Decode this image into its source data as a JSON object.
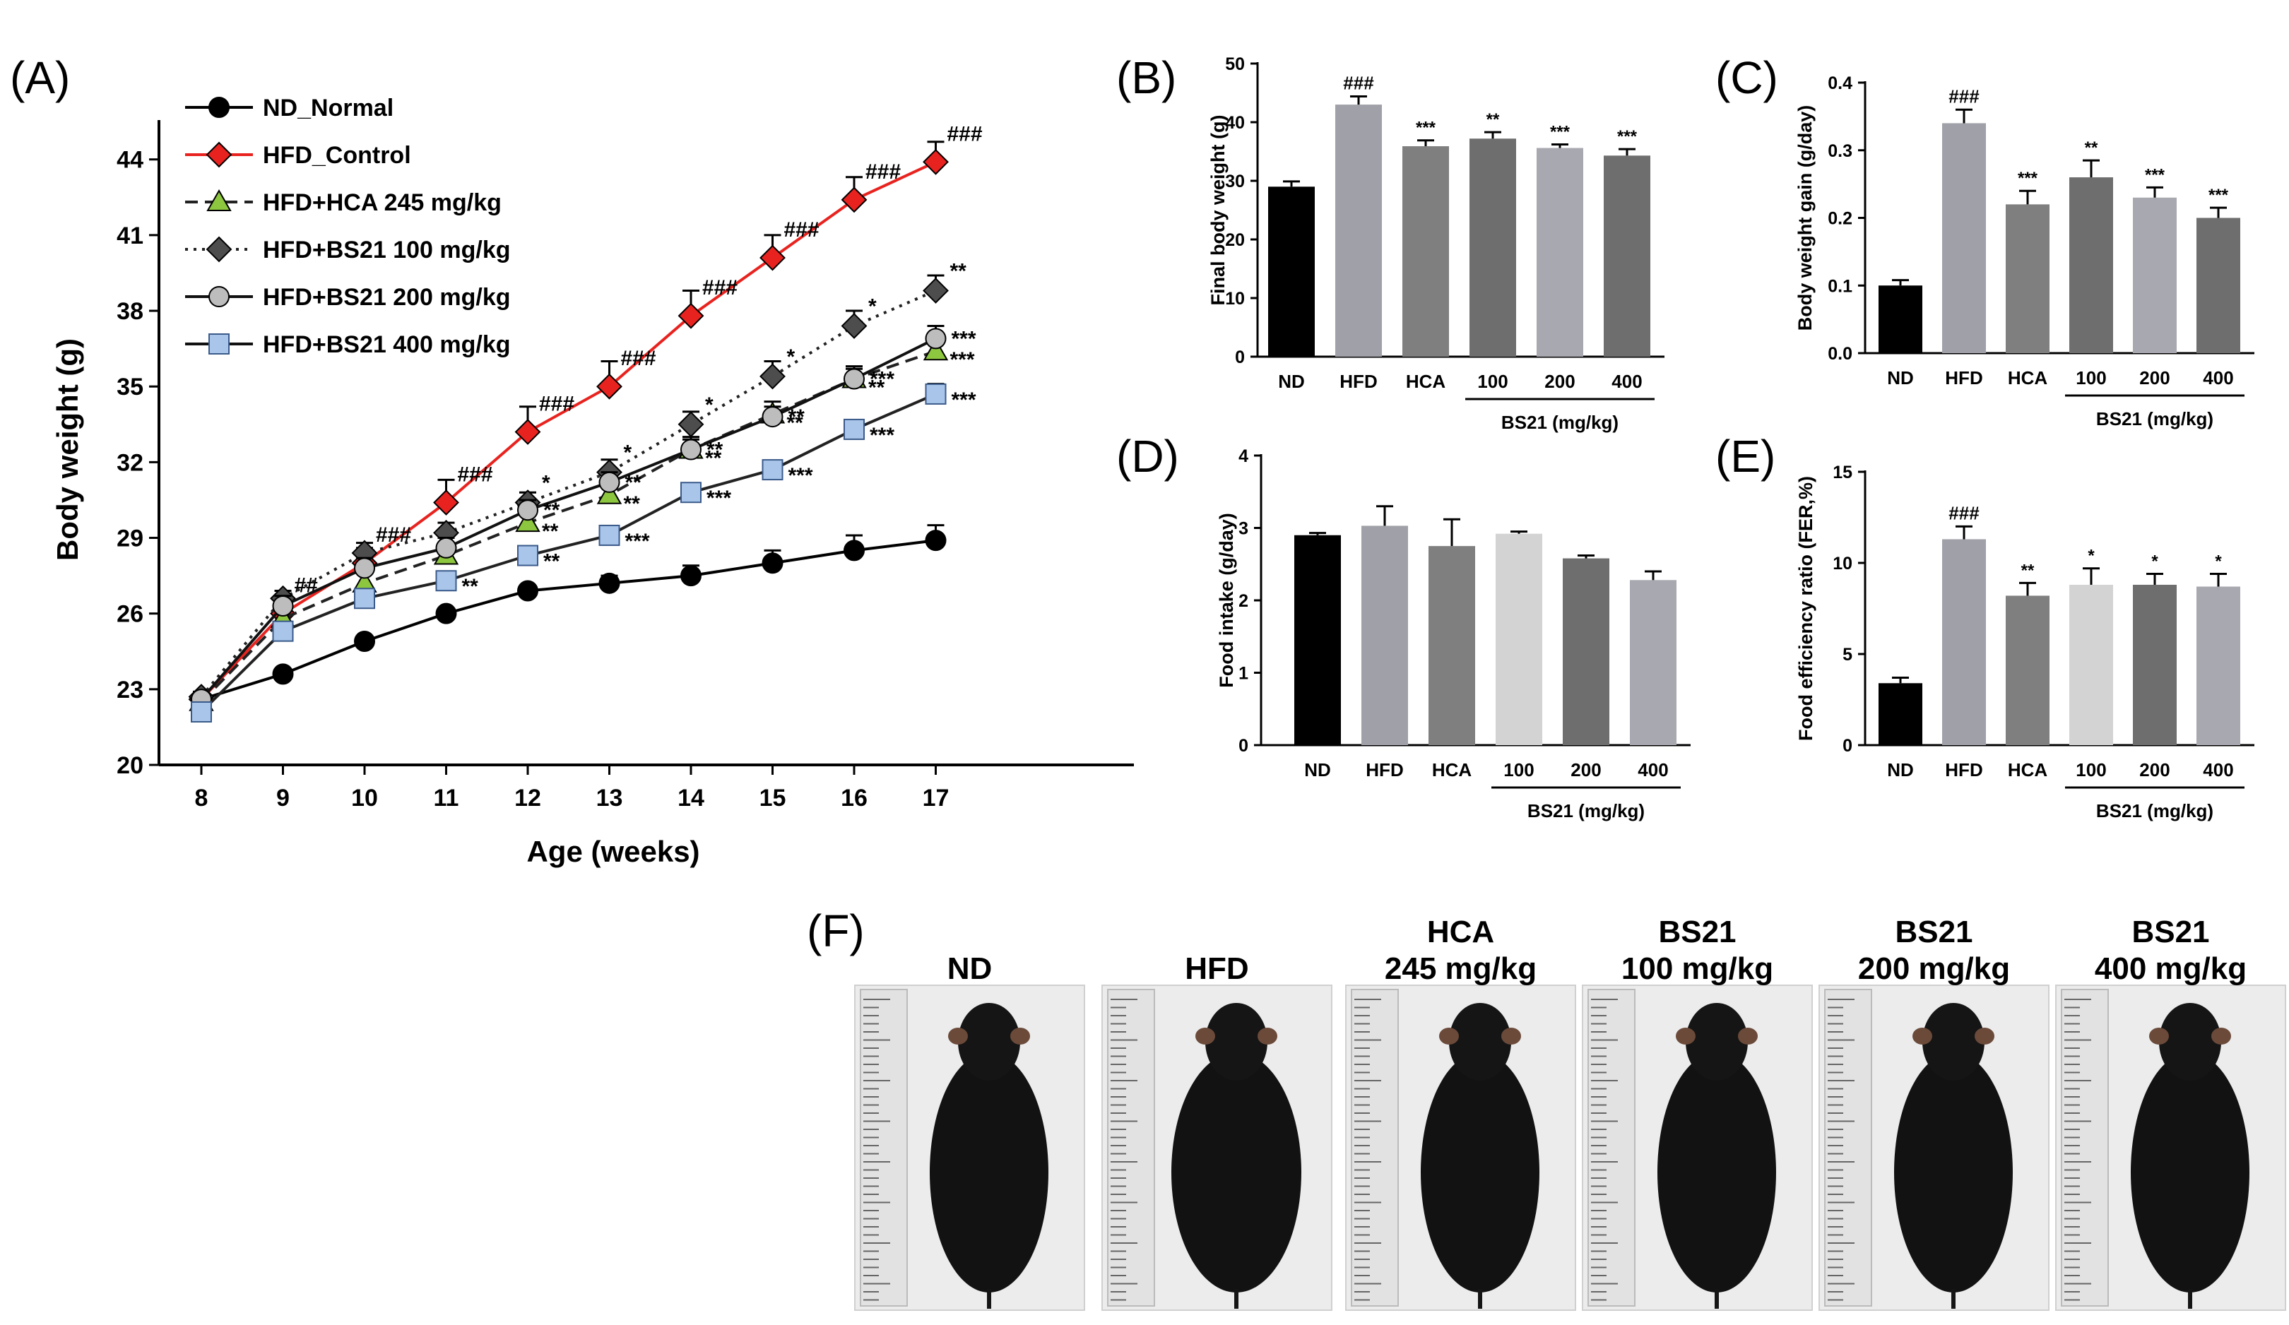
{
  "panels": {
    "A": "(A)",
    "B": "(B)",
    "C": "(C)",
    "D": "(D)",
    "E": "(E)",
    "F": "(F)"
  },
  "chart_data": [
    {
      "panel": "A",
      "type": "line",
      "xlabel": "Age (weeks)",
      "ylabel": "Body  weight (g)",
      "x": [
        8,
        9,
        10,
        11,
        12,
        13,
        14,
        15,
        16,
        17
      ],
      "ylim": [
        20,
        45
      ],
      "yticks": [
        20,
        23,
        26,
        29,
        32,
        35,
        38,
        41,
        44
      ],
      "legend_position": "top-left",
      "series": [
        {
          "name": "ND_Normal",
          "color": "#000000",
          "marker": "circle",
          "dash": "solid",
          "values": [
            22.6,
            23.6,
            24.9,
            26.0,
            26.9,
            27.2,
            27.5,
            28.0,
            28.5,
            28.9
          ],
          "errors": [
            0.2,
            0.2,
            0.2,
            0.2,
            0.2,
            0.3,
            0.4,
            0.5,
            0.6,
            0.6
          ],
          "annotations": [
            "",
            "",
            "",
            "",
            "",
            "",
            "",
            "",
            "",
            ""
          ]
        },
        {
          "name": "HFD_Control",
          "color": "#e8231f",
          "marker": "diamond",
          "dash": "solid",
          "values": [
            22.6,
            26.0,
            28.0,
            30.4,
            33.2,
            35.0,
            37.8,
            40.1,
            42.4,
            43.9
          ],
          "errors": [
            0.2,
            0.4,
            0.6,
            0.9,
            1.0,
            1.0,
            1.0,
            0.9,
            0.9,
            0.8
          ],
          "annotations": [
            "",
            "##",
            "###",
            "###",
            "###",
            "###",
            "###",
            "###",
            "###",
            "###"
          ]
        },
        {
          "name": "HFD+HCA 245 mg/kg",
          "color": "#8dc63f",
          "marker": "triangle",
          "dash": "dashed",
          "values": [
            22.5,
            25.8,
            27.2,
            28.3,
            29.6,
            30.7,
            32.5,
            33.9,
            35.3,
            36.4
          ],
          "errors": [
            0.2,
            0.4,
            0.5,
            0.5,
            0.5,
            0.5,
            0.5,
            0.5,
            0.5,
            0.5
          ],
          "annotations": [
            "",
            "",
            "",
            "",
            "**",
            "**",
            "**",
            "**",
            "**",
            "***"
          ]
        },
        {
          "name": "HFD+BS21 100 mg/kg",
          "color": "#4d4d4d",
          "marker": "diamond",
          "dash": "dotted",
          "values": [
            22.7,
            26.6,
            28.4,
            29.2,
            30.4,
            31.6,
            33.5,
            35.4,
            37.4,
            38.8
          ],
          "errors": [
            0.2,
            0.3,
            0.4,
            0.4,
            0.4,
            0.5,
            0.5,
            0.6,
            0.6,
            0.6
          ],
          "annotations": [
            "",
            "",
            "",
            "",
            "*",
            "*",
            "*",
            "*",
            "*",
            "**"
          ]
        },
        {
          "name": "HFD+BS21 200 mg/kg",
          "color": "#bdbdbd",
          "marker": "circle",
          "dash": "solid",
          "values": [
            22.6,
            26.3,
            27.8,
            28.6,
            30.1,
            31.2,
            32.5,
            33.8,
            35.3,
            36.9
          ],
          "errors": [
            0.2,
            0.4,
            0.4,
            0.4,
            0.4,
            0.4,
            0.4,
            0.4,
            0.4,
            0.5
          ],
          "annotations": [
            "",
            "",
            "",
            "",
            "**",
            "**",
            "**",
            "**",
            "***",
            "***"
          ]
        },
        {
          "name": "HFD+BS21 400 mg/kg",
          "color": "#a9c6ea",
          "marker": "square",
          "dash": "solid",
          "values": [
            22.1,
            25.3,
            26.6,
            27.3,
            28.3,
            29.1,
            30.8,
            31.7,
            33.3,
            34.7
          ],
          "errors": [
            0.2,
            0.3,
            0.3,
            0.3,
            0.3,
            0.3,
            0.3,
            0.3,
            0.3,
            0.4
          ],
          "annotations": [
            "",
            "",
            "",
            "**",
            "**",
            "***",
            "***",
            "***",
            "***",
            "***"
          ]
        }
      ]
    },
    {
      "panel": "B",
      "type": "bar",
      "ylabel": "Final body weight (g)",
      "categories": [
        "ND",
        "HFD",
        "HCA",
        "100",
        "200",
        "400"
      ],
      "group_label": "BS21 (mg/kg)",
      "values": [
        29.0,
        43.0,
        35.9,
        37.2,
        35.6,
        34.3
      ],
      "errors": [
        0.9,
        1.4,
        1.0,
        1.1,
        0.6,
        1.1
      ],
      "annotations": [
        "",
        "###",
        "***",
        "**",
        "***",
        "***"
      ],
      "ylim": [
        0,
        50
      ],
      "yticks": [
        0,
        10,
        20,
        30,
        40,
        50
      ],
      "colors": [
        "#000000",
        "#a0a0a8",
        "#7f7f7f",
        "#6e6e6e",
        "#a8a8b0",
        "#6e6e6e"
      ]
    },
    {
      "panel": "C",
      "type": "bar",
      "ylabel": "Body weight gain (g/day)",
      "categories": [
        "ND",
        "HFD",
        "HCA",
        "100",
        "200",
        "400"
      ],
      "group_label": "BS21 (mg/kg)",
      "values": [
        0.1,
        0.34,
        0.22,
        0.26,
        0.23,
        0.2
      ],
      "errors": [
        0.008,
        0.02,
        0.02,
        0.025,
        0.015,
        0.015
      ],
      "annotations": [
        "",
        "###",
        "***",
        "**",
        "***",
        "***"
      ],
      "ylim": [
        0,
        0.4
      ],
      "yticks": [
        "0.0",
        "0.1",
        "0.2",
        "0.3",
        "0.4"
      ],
      "colors": [
        "#000000",
        "#a0a0a8",
        "#7f7f7f",
        "#6e6e6e",
        "#a8a8b0",
        "#6e6e6e"
      ]
    },
    {
      "panel": "D",
      "type": "bar",
      "ylabel": "Food intake (g/day)",
      "categories": [
        "ND",
        "HFD",
        "HCA",
        "100",
        "200",
        "400"
      ],
      "group_label": "BS21 (mg/kg)",
      "values": [
        2.9,
        3.03,
        2.75,
        2.92,
        2.58,
        2.28
      ],
      "errors": [
        0.03,
        0.27,
        0.37,
        0.03,
        0.04,
        0.12
      ],
      "annotations": [
        "",
        "",
        "",
        "",
        "",
        ""
      ],
      "ylim": [
        0,
        4
      ],
      "yticks": [
        0,
        1,
        2,
        3,
        4
      ],
      "colors": [
        "#000000",
        "#a0a0a8",
        "#7f7f7f",
        "#d3d3d3",
        "#6e6e6e",
        "#a8a8b0"
      ]
    },
    {
      "panel": "E",
      "type": "bar",
      "ylabel": "Food efficiency ratio (FER,%)",
      "categories": [
        "ND",
        "HFD",
        "HCA",
        "100",
        "200",
        "400"
      ],
      "group_label": "BS21 (mg/kg)",
      "values": [
        3.4,
        11.3,
        8.2,
        8.8,
        8.8,
        8.7
      ],
      "errors": [
        0.3,
        0.7,
        0.7,
        0.9,
        0.6,
        0.7
      ],
      "annotations": [
        "",
        "###",
        "**",
        "*",
        "*",
        "*"
      ],
      "ylim": [
        0,
        15
      ],
      "yticks": [
        0,
        5,
        10,
        15
      ],
      "colors": [
        "#000000",
        "#a0a0a8",
        "#7f7f7f",
        "#d3d3d3",
        "#6e6e6e",
        "#a8a8b0"
      ]
    }
  ],
  "photos": [
    {
      "line1": "ND",
      "line2": ""
    },
    {
      "line1": "HFD",
      "line2": ""
    },
    {
      "line1": "HCA",
      "line2": "245 mg/kg"
    },
    {
      "line1": "BS21",
      "line2": "100 mg/kg"
    },
    {
      "line1": "BS21",
      "line2": "200 mg/kg"
    },
    {
      "line1": "BS21",
      "line2": "400 mg/kg"
    }
  ]
}
